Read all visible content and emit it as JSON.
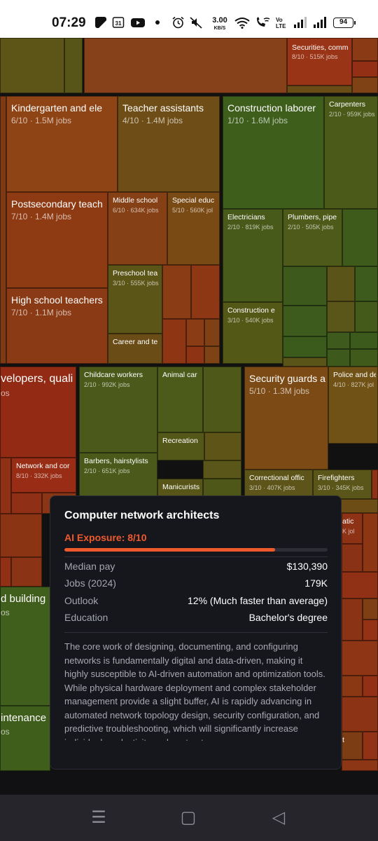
{
  "status_bar": {
    "time": "07:29",
    "speed_value": "3.00",
    "speed_unit": "KB/S",
    "volte": "Vo LTE",
    "battery": "94"
  },
  "treemap": {
    "cells": [
      {
        "name": "securities",
        "title": "Securities, comm",
        "sub": "8/10 · 515K jobs",
        "color": "#9a3416",
        "size": "sm"
      },
      {
        "name": "kindergarten",
        "title": "Kindergarten and ele",
        "sub": "6/10 · 1.5M jobs",
        "color": "#8f4415",
        "size": "big"
      },
      {
        "name": "teacher-assistants",
        "title": "Teacher assistants",
        "sub": "4/10 · 1.4M jobs",
        "color": "#6e4e16",
        "size": "big"
      },
      {
        "name": "construction-laborer",
        "title": "Construction laborer",
        "sub": "1/10 · 1.6M jobs",
        "color": "#3e5e1c",
        "size": "big"
      },
      {
        "name": "carpenters",
        "title": "Carpenters",
        "sub": "2/10 · 959K jobs",
        "color": "#4b5a19",
        "size": "sm"
      },
      {
        "name": "postsecondary",
        "title": "Postsecondary teach",
        "sub": "7/10 · 1.4M jobs",
        "color": "#8e3b14",
        "size": "big"
      },
      {
        "name": "middle-school",
        "title": "Middle school",
        "sub": "6/10 · 634K jobs",
        "color": "#854015",
        "size": "sm"
      },
      {
        "name": "special-educ",
        "title": "Special educ",
        "sub": "5/10 · 560K jol",
        "color": "#7a4a15",
        "size": "sm"
      },
      {
        "name": "electricians",
        "title": "Electricians",
        "sub": "2/10 · 819K jobs",
        "color": "#485a1a",
        "size": "sm"
      },
      {
        "name": "plumbers",
        "title": "Plumbers, pipe",
        "sub": "2/10 · 505K jobs",
        "color": "#4d5a19",
        "size": "sm"
      },
      {
        "name": "preschool",
        "title": "Preschool tea",
        "sub": "3/10 · 555K jobs",
        "color": "#5c5518",
        "size": "sm"
      },
      {
        "name": "high-school",
        "title": "High school teachers",
        "sub": "7/10 · 1.1M jobs",
        "color": "#8a3a14",
        "size": "big"
      },
      {
        "name": "construction-e",
        "title": "Construction e",
        "sub": "3/10 · 540K jobs",
        "color": "#545817",
        "size": "sm"
      },
      {
        "name": "career",
        "title": "Career and te",
        "sub": "",
        "color": "#6a4d16",
        "size": "sm"
      },
      {
        "name": "developers",
        "title": "velopers, quali",
        "sub": "os",
        "color": "#922a14",
        "size": "big"
      },
      {
        "name": "childcare",
        "title": "Childcare workers",
        "sub": "2/10 · 992K jobs",
        "color": "#4b5a1a",
        "size": "sm"
      },
      {
        "name": "animal-care",
        "title": "Animal car",
        "sub": "",
        "color": "#4c5a1a",
        "size": "sm"
      },
      {
        "name": "security-guards",
        "title": "Security guards and",
        "sub": "5/10 · 1.3M jobs",
        "color": "#7c4a15",
        "size": "big"
      },
      {
        "name": "police",
        "title": "Police and de",
        "sub": "4/10 · 827K jol",
        "color": "#705216",
        "size": "sm"
      },
      {
        "name": "recreation",
        "title": "Recreation",
        "sub": "",
        "color": "#535718",
        "size": "sm"
      },
      {
        "name": "network-and-cor",
        "title": "Network and cor",
        "sub": "8/10 · 332K jobs",
        "color": "#982c14",
        "size": "sm"
      },
      {
        "name": "barbers",
        "title": "Barbers, hairstylists",
        "sub": "2/10 · 651K jobs",
        "color": "#4b5a1a",
        "size": "sm"
      },
      {
        "name": "manicurists",
        "title": "Manicurists",
        "sub": "",
        "color": "#575618",
        "size": "sm"
      },
      {
        "name": "correctional",
        "title": "Correctional offic",
        "sub": "3/10 · 407K jobs",
        "color": "#5c5418",
        "size": "sm"
      },
      {
        "name": "firefighters",
        "title": "Firefighters",
        "sub": "3/10 · 345K jobs",
        "color": "#5a5518",
        "size": "sm"
      },
      {
        "name": "building",
        "title": "d building c",
        "sub": "os",
        "color": "#405e1c",
        "size": "big"
      },
      {
        "name": "maintenance",
        "title": "intenance",
        "sub": "os",
        "color": "#3f5e1c",
        "size": "big"
      },
      {
        "name": "right-peek-1",
        "title": "atic",
        "sub": "K jol",
        "color": "#8e3215",
        "size": "sm"
      },
      {
        "name": "right-peek-2",
        "title": "t",
        "sub": "",
        "color": "#7d3d14",
        "size": "sm"
      }
    ]
  },
  "tooltip": {
    "title": "Computer network architects",
    "exposure_label": "AI Exposure: 8/10",
    "exposure_fraction": 0.8,
    "rows": [
      {
        "key": "Median pay",
        "value": "$130,390"
      },
      {
        "key": "Jobs (2024)",
        "value": "179K"
      },
      {
        "key": "Outlook",
        "value": "12% (Much faster than average)"
      },
      {
        "key": "Education",
        "value": "Bachelor's degree"
      }
    ],
    "description": "The core work of designing, documenting, and configuring networks is fundamentally digital and data-driven, making it highly susceptible to AI-driven automation and optimization tools. While physical hardware deployment and complex stakeholder management provide a slight buffer, AI is rapidly advancing in automated network topology design, security configuration, and predictive troubleshooting, which will significantly increase individual productivity and contract"
  },
  "nav_bar": {
    "menu_icon": "☰",
    "home_icon": "▢",
    "back_icon": "◁"
  },
  "colors": {
    "accent": "#ef5a2d",
    "tooltip_bg": "#16171d"
  }
}
